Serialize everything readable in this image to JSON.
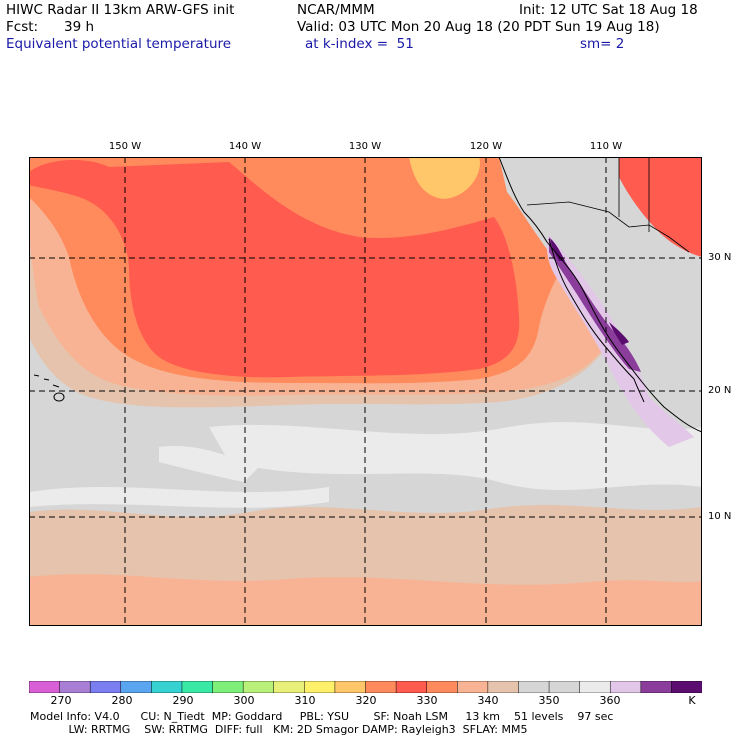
{
  "header": {
    "model_title": "HIWC Radar II 13km ARW-GFS init",
    "org": "NCAR/MMM",
    "init": "Init: 12 UTC Sat 18 Aug 18",
    "fcst_label": "Fcst:",
    "fcst_value": "39 h",
    "valid": "Valid: 03 UTC Mon 20 Aug 18 (20 PDT Sun 19 Aug 18)",
    "field_name": "Equivalent potential temperature",
    "level": "at k-index =  51",
    "smoothing": "sm= 2"
  },
  "map": {
    "longitude_labels": [
      "150 W",
      "140 W",
      "130 W",
      "120 W",
      "110 W"
    ],
    "latitude_labels": [
      "30 N",
      "20 N",
      "10 N"
    ],
    "colors": {
      "hot_band": "#ff5b4f",
      "warm": "#ff8a5c",
      "peach": "#f7b393",
      "tan": "#e6c3ad",
      "light_gray": "#d6d6d6",
      "very_light": "#ebebeb",
      "lavender": "#e2c7e8",
      "purple": "#8a3d9a",
      "dark_purple": "#5a0d6f",
      "yellow": "#ffc76a"
    }
  },
  "colorbar": {
    "unit": "K",
    "tick_labels": [
      "270",
      "280",
      "290",
      "300",
      "310",
      "320",
      "330",
      "340",
      "350",
      "360"
    ],
    "swatches": [
      "#d85fd6",
      "#a97fd6",
      "#7a7ef0",
      "#5aa5f0",
      "#36d2d2",
      "#3ae8a6",
      "#7ef07a",
      "#b8f07a",
      "#e8f07a",
      "#fff06a",
      "#ffc76a",
      "#ff8a5c",
      "#ff5b4f",
      "#ff8a5c",
      "#f7b393",
      "#e6c3ad",
      "#d6d6d6",
      "#d6d6d6",
      "#ebebeb",
      "#e2c7e8",
      "#8a3d9a",
      "#5a0d6f"
    ]
  },
  "footer": {
    "line1": "Model Info: V4.0      CU: N_Tiedt  MP: Goddard     PBL: YSU       SF: Noah LSM     13 km    51 levels    97 sec",
    "line2": "           LW: RRTMG    SW: RRTMG  DIFF: full   KM: 2D Smagor DAMP: Rayleigh3  SFLAY: MM5"
  }
}
